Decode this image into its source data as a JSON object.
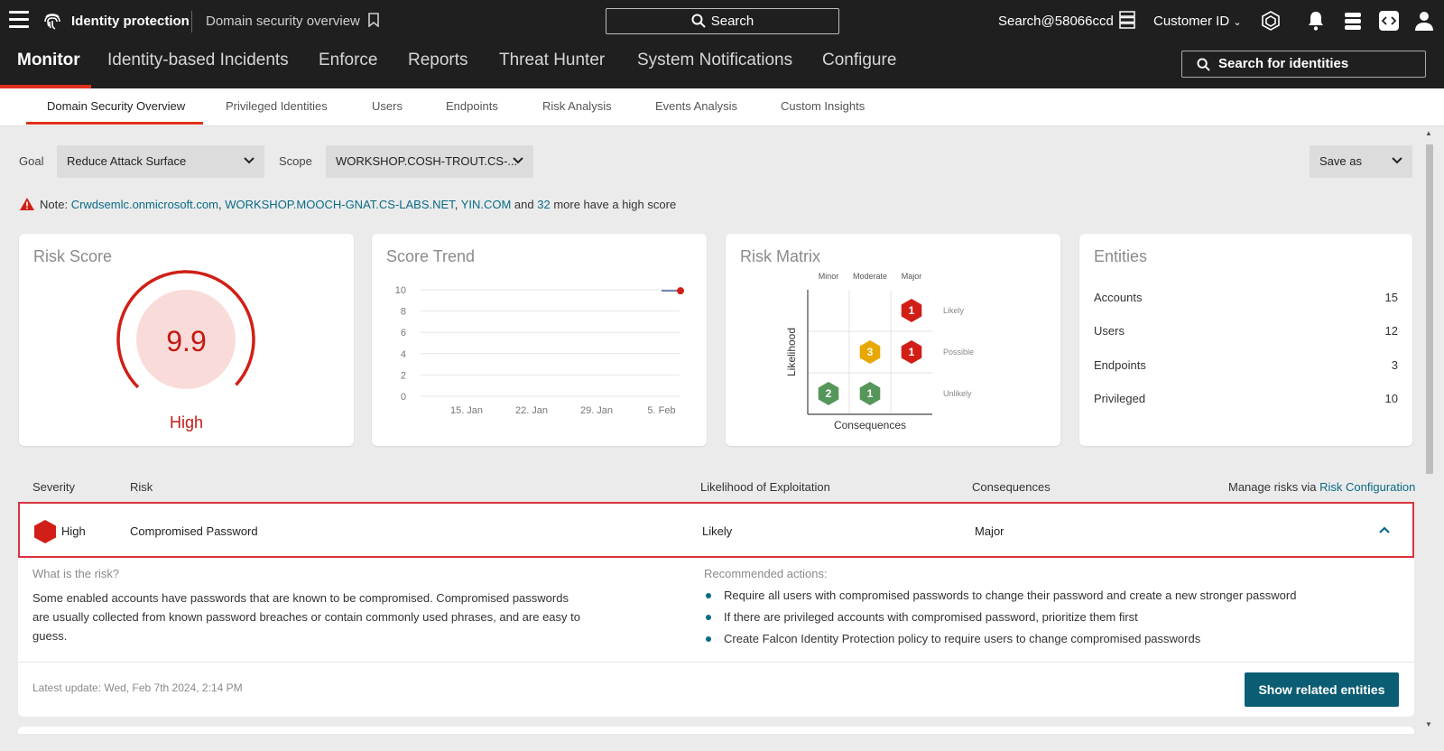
{
  "topbar": {
    "app_title": "Identity protection",
    "page_title": "Domain security overview",
    "search_label": "Search",
    "user": "Search@58066ccd",
    "customer_label": "Customer ID"
  },
  "nav": {
    "items": [
      "Monitor",
      "Identity-based Incidents",
      "Enforce",
      "Reports",
      "Threat Hunter",
      "System Notifications",
      "Configure"
    ],
    "active": "Monitor",
    "identity_search": "Search for identities"
  },
  "subtabs": [
    "Domain Security Overview",
    "Privileged Identities",
    "Users",
    "Endpoints",
    "Risk Analysis",
    "Events Analysis",
    "Custom Insights"
  ],
  "filters": {
    "goal_label": "Goal",
    "goal_value": "Reduce Attack Surface",
    "scope_label": "Scope",
    "scope_value": "WORKSHOP.COSH-TROUT.CS-...",
    "save_as": "Save as"
  },
  "note": {
    "prefix": "Note: ",
    "link1": "Crwdsemlc.onmicrosoft.com",
    "sep1": ", ",
    "link2": "WORKSHOP.MOOCH-GNAT.CS-LABS.NET",
    "sep2": ", ",
    "link3": "YIN.COM",
    "mid": " and ",
    "link4": "32",
    "suffix": " more have a high score"
  },
  "risk_score": {
    "title": "Risk Score",
    "value": "9.9",
    "level": "High",
    "gauge_fraction": 0.99
  },
  "score_trend": {
    "title": "Score Trend",
    "y_ticks": [
      "10",
      "8",
      "6",
      "4",
      "2",
      "0"
    ],
    "x_ticks": [
      "15. Jan",
      "22. Jan",
      "29. Jan",
      "5. Feb"
    ]
  },
  "chart_data": {
    "type": "line",
    "title": "Score Trend",
    "x": [
      "5. Feb",
      "7. Feb"
    ],
    "series": [
      {
        "values": [
          9.9,
          9.9
        ]
      }
    ],
    "ylim": [
      0,
      10
    ],
    "grid": true
  },
  "risk_matrix": {
    "title": "Risk Matrix",
    "columns": [
      "Minor",
      "Moderate",
      "Major"
    ],
    "rows": [
      "Likely",
      "Possible",
      "Unlikely"
    ],
    "y_label": "Likelihood",
    "x_label": "Consequences",
    "cells": [
      {
        "row": "Likely",
        "col": "Major",
        "count": "1",
        "color": "#d11f17"
      },
      {
        "row": "Possible",
        "col": "Moderate",
        "count": "3",
        "color": "#e8a800"
      },
      {
        "row": "Possible",
        "col": "Major",
        "count": "1",
        "color": "#d11f17"
      },
      {
        "row": "Unlikely",
        "col": "Minor",
        "count": "2",
        "color": "#55975a"
      },
      {
        "row": "Unlikely",
        "col": "Moderate",
        "count": "1",
        "color": "#55975a"
      }
    ]
  },
  "entities": {
    "title": "Entities",
    "rows": [
      {
        "label": "Accounts",
        "value": "15"
      },
      {
        "label": "Users",
        "value": "12"
      },
      {
        "label": "Endpoints",
        "value": "3"
      },
      {
        "label": "Privileged",
        "value": "10"
      }
    ]
  },
  "table": {
    "headers": {
      "severity": "Severity",
      "risk": "Risk",
      "likelihood": "Likelihood of Exploitation",
      "consequences": "Consequences",
      "manage_prefix": "Manage risks via ",
      "manage_link": "Risk Configuration"
    },
    "row": {
      "severity": "High",
      "risk": "Compromised Password",
      "likelihood": "Likely",
      "consequences": "Major"
    }
  },
  "details": {
    "what_title": "What is the risk?",
    "what_text": "Some enabled accounts have passwords that are known to be compromised. Compromised passwords are usually collected from known password breaches or contain commonly used phrases, and are easy to guess.",
    "actions_title": "Recommended actions:",
    "actions": [
      "Require all users with compromised passwords to change their password and create a new stronger password",
      "If there are privileged accounts with compromised password, prioritize them first",
      "Create Falcon Identity Protection policy to require users to change compromised passwords"
    ],
    "updated": "Latest update: Wed, Feb 7th 2024, 2:14 PM",
    "button": "Show related entities"
  },
  "colors": {
    "accent": "#e0301e",
    "high": "#c41a13",
    "link": "#0a6b86",
    "primary_button": "#0b5d73"
  }
}
